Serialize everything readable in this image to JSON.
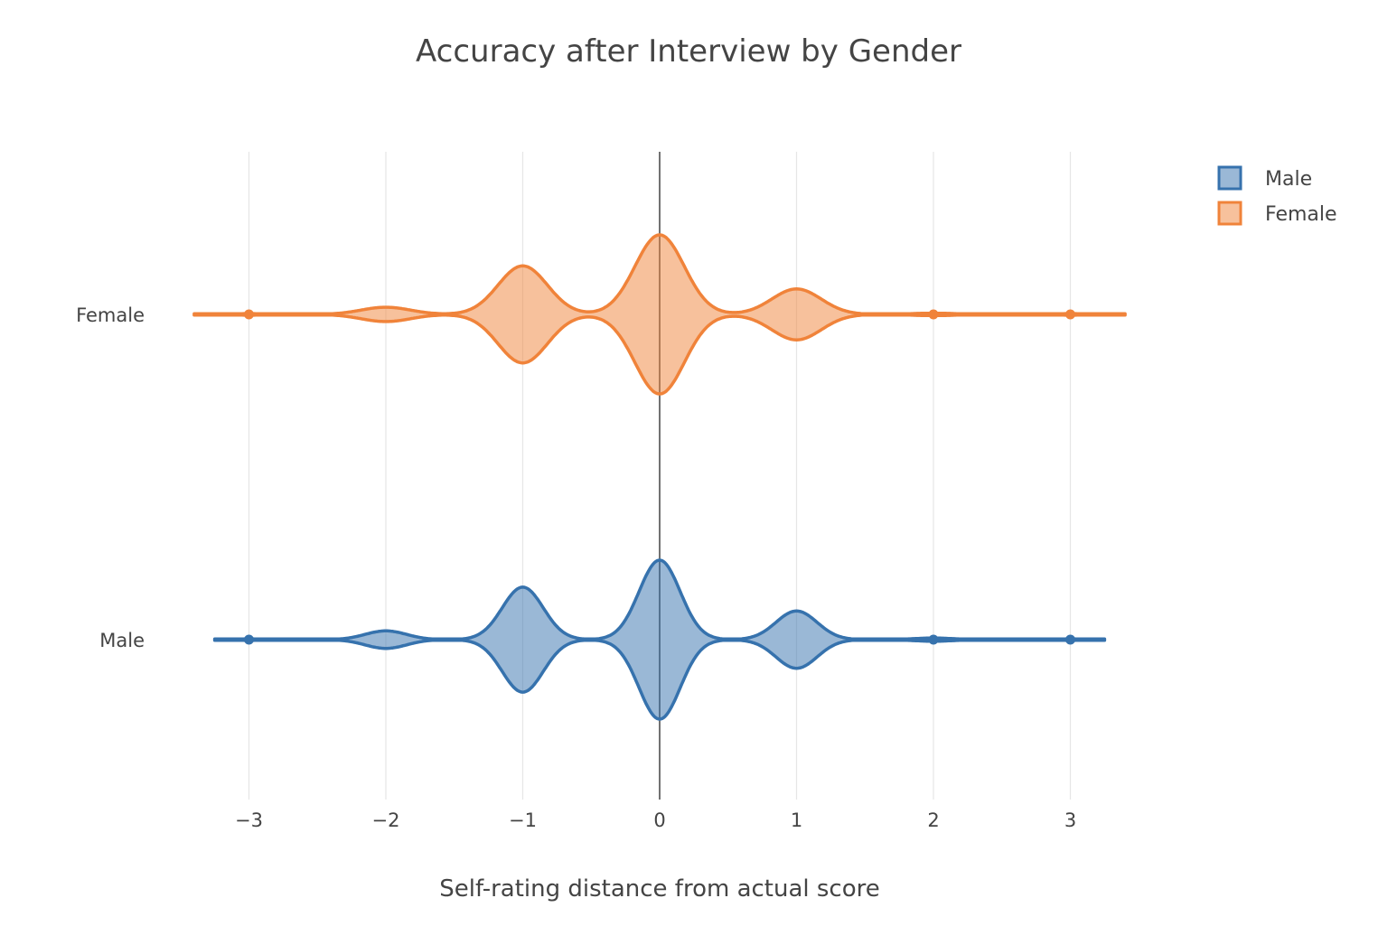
{
  "chart_data": {
    "type": "violin",
    "orientation": "horizontal",
    "title": "Accuracy after Interview by Gender",
    "xlabel": "Self-rating distance from actual score",
    "ylabel": "",
    "xlim": [
      -3.4,
      3.4
    ],
    "x_ticks": [
      -3,
      -2,
      -1,
      0,
      1,
      2,
      3
    ],
    "x_tick_labels": [
      "−3",
      "−2",
      "−1",
      "0",
      "1",
      "2",
      "3"
    ],
    "categories": [
      "Female",
      "Male"
    ],
    "grid": true,
    "zero_line": true,
    "legend_position": "top-right",
    "series": [
      {
        "name": "Male",
        "color": "#3672ad",
        "fill": "rgba(54,114,173,0.5)",
        "extent": [
          -3.25,
          3.25
        ],
        "bandwidth": 0.15,
        "relative_density": {
          "-3": 0.01,
          "-2": 0.11,
          "-1": 0.66,
          "0": 1.0,
          "1": 0.36,
          "2": 0.02,
          "3": 0.01
        },
        "outlier_points": [
          -3,
          2,
          3
        ]
      },
      {
        "name": "Female",
        "color": "#f0833a",
        "fill": "rgba(240,131,58,0.5)",
        "extent": [
          -3.4,
          3.4
        ],
        "bandwidth": 0.18,
        "relative_density": {
          "-3": 0.01,
          "-2": 0.09,
          "-1": 0.61,
          "0": 1.0,
          "1": 0.32,
          "2": 0.015,
          "3": 0.01
        },
        "outlier_points": [
          -3,
          2,
          3
        ]
      }
    ]
  }
}
